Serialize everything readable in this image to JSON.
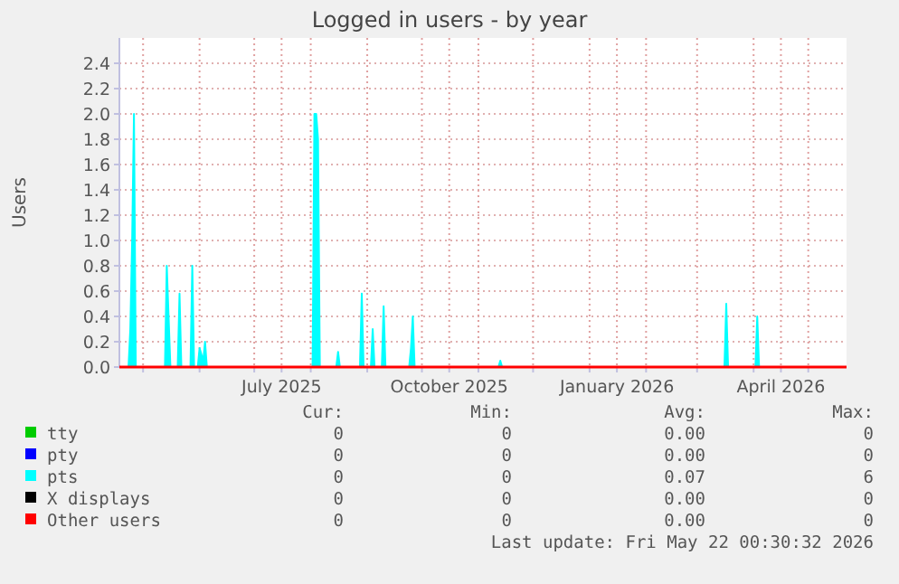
{
  "chart_data": {
    "type": "area",
    "title": "Logged in users - by year",
    "ylabel": "Users",
    "xlim": [
      "2025-04-18",
      "2026-05-22"
    ],
    "xticks": [
      {
        "value": "2025-05-01",
        "label": null
      },
      {
        "value": "2025-06-01",
        "label": null
      },
      {
        "value": "2025-07-01",
        "label": null
      },
      {
        "value": "2025-07-16",
        "label": "July 2025"
      },
      {
        "value": "2025-08-01",
        "label": null
      },
      {
        "value": "2025-09-01",
        "label": null
      },
      {
        "value": "2025-10-01",
        "label": null
      },
      {
        "value": "2025-10-16",
        "label": "October 2025"
      },
      {
        "value": "2025-11-01",
        "label": null
      },
      {
        "value": "2025-12-01",
        "label": null
      },
      {
        "value": "2026-01-01",
        "label": null
      },
      {
        "value": "2026-01-16",
        "label": "January 2026"
      },
      {
        "value": "2026-02-01",
        "label": null
      },
      {
        "value": "2026-03-01",
        "label": null
      },
      {
        "value": "2026-04-01",
        "label": null
      },
      {
        "value": "2026-04-16",
        "label": "April 2026"
      },
      {
        "value": "2026-05-01",
        "label": null
      }
    ],
    "ylim": [
      0,
      2.6
    ],
    "yticks": [
      {
        "value": 0,
        "label": "0.0"
      },
      0.2,
      0.4,
      0.6,
      0.8,
      {
        "value": 1,
        "label": "1.0"
      },
      1.2,
      1.4,
      1.6,
      1.8,
      {
        "value": 2,
        "label": "2.0"
      },
      2.2,
      2.4
    ],
    "grid": true,
    "legend": "bottom",
    "series": [
      {
        "name": "tty",
        "type": "line",
        "color": "#00cc00"
      },
      {
        "name": "pty",
        "type": "line",
        "color": "#0000ff"
      },
      {
        "name": "pts",
        "color": "#00ffff",
        "x": [
          "2025-04-18",
          "2025-04-23",
          "2025-04-24",
          "2025-04-25",
          "2025-04-26",
          "2025-04-27",
          "2025-05-13",
          "2025-05-14",
          "2025-05-15",
          "2025-05-16",
          "2025-05-20",
          "2025-05-21",
          "2025-05-22",
          "2025-05-27",
          "2025-05-28",
          "2025-05-29",
          "2025-05-31",
          "2025-06-01",
          "2025-06-02",
          "2025-06-03",
          "2025-06-04",
          "2025-06-05",
          "2025-08-02",
          "2025-08-03",
          "2025-08-04",
          "2025-08-05",
          "2025-08-06",
          "2025-08-15",
          "2025-08-16",
          "2025-08-17",
          "2025-08-28",
          "2025-08-29",
          "2025-08-30",
          "2025-09-03",
          "2025-09-04",
          "2025-09-05",
          "2025-09-09",
          "2025-09-10",
          "2025-09-11",
          "2025-09-24",
          "2025-09-25",
          "2025-09-26",
          "2025-09-27",
          "2025-11-12",
          "2025-11-13",
          "2025-11-14",
          "2026-03-16",
          "2026-03-17",
          "2026-03-18",
          "2026-04-02",
          "2026-04-03",
          "2026-04-04",
          "2026-05-22"
        ],
        "values": [
          0,
          0,
          0.3,
          1.0,
          2.0,
          0,
          0,
          0.8,
          0.4,
          0,
          0,
          0.58,
          0,
          0,
          0.8,
          0,
          0,
          0.15,
          0.1,
          0.05,
          0.2,
          0,
          0,
          2.0,
          2.0,
          1.8,
          0,
          0,
          0.12,
          0,
          0,
          0.58,
          0,
          0,
          0.3,
          0,
          0,
          0.48,
          0,
          0,
          0.15,
          0.4,
          0,
          0,
          0.05,
          0,
          0,
          0.5,
          0,
          0,
          0.4,
          0,
          0
        ]
      },
      {
        "name": "X displays",
        "type": "line",
        "color": "#000000"
      },
      {
        "name": "Other users",
        "type": "line",
        "color": "#ff0000",
        "x": [
          "2025-04-18",
          "2026-05-22"
        ],
        "values": [
          0,
          0
        ]
      }
    ],
    "annotations": [
      "Cur:",
      "Min:",
      "Avg:",
      "Max:",
      "0",
      "0",
      "0.00",
      "0",
      "0",
      "0",
      "0.00",
      "0",
      "0",
      "0",
      "0.07",
      "6",
      "0",
      "0",
      "0.00",
      "0",
      "0",
      "0",
      "0.00",
      "0",
      "Last update: Fri May 22 00:30:32 2026"
    ]
  }
}
